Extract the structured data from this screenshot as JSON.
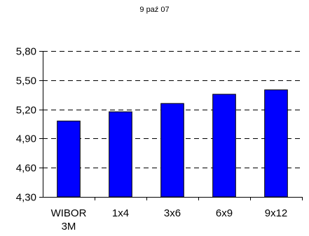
{
  "chart_data": {
    "type": "bar",
    "title": "9 paź 07",
    "categories": [
      "WIBOR 3M",
      "1x4",
      "3x6",
      "6x9",
      "9x12"
    ],
    "category_lines": [
      [
        "WIBOR",
        "3M"
      ],
      [
        "1x4"
      ],
      [
        "3x6"
      ],
      [
        "6x9"
      ],
      [
        "9x12"
      ]
    ],
    "values": [
      5.08,
      5.175,
      5.26,
      5.355,
      5.4
    ],
    "ylim": [
      4.3,
      5.8
    ],
    "yticks": [
      4.3,
      4.6,
      4.9,
      5.2,
      5.5,
      5.8
    ],
    "ytick_labels": [
      "4,30",
      "4,60",
      "4,90",
      "5,20",
      "5,50",
      "5,80"
    ],
    "xlabel": "",
    "ylabel": "",
    "grid": "horizontal-dashed",
    "legend": "none",
    "bar_color": "#0000ff",
    "bar_edge_color": "#000000"
  }
}
